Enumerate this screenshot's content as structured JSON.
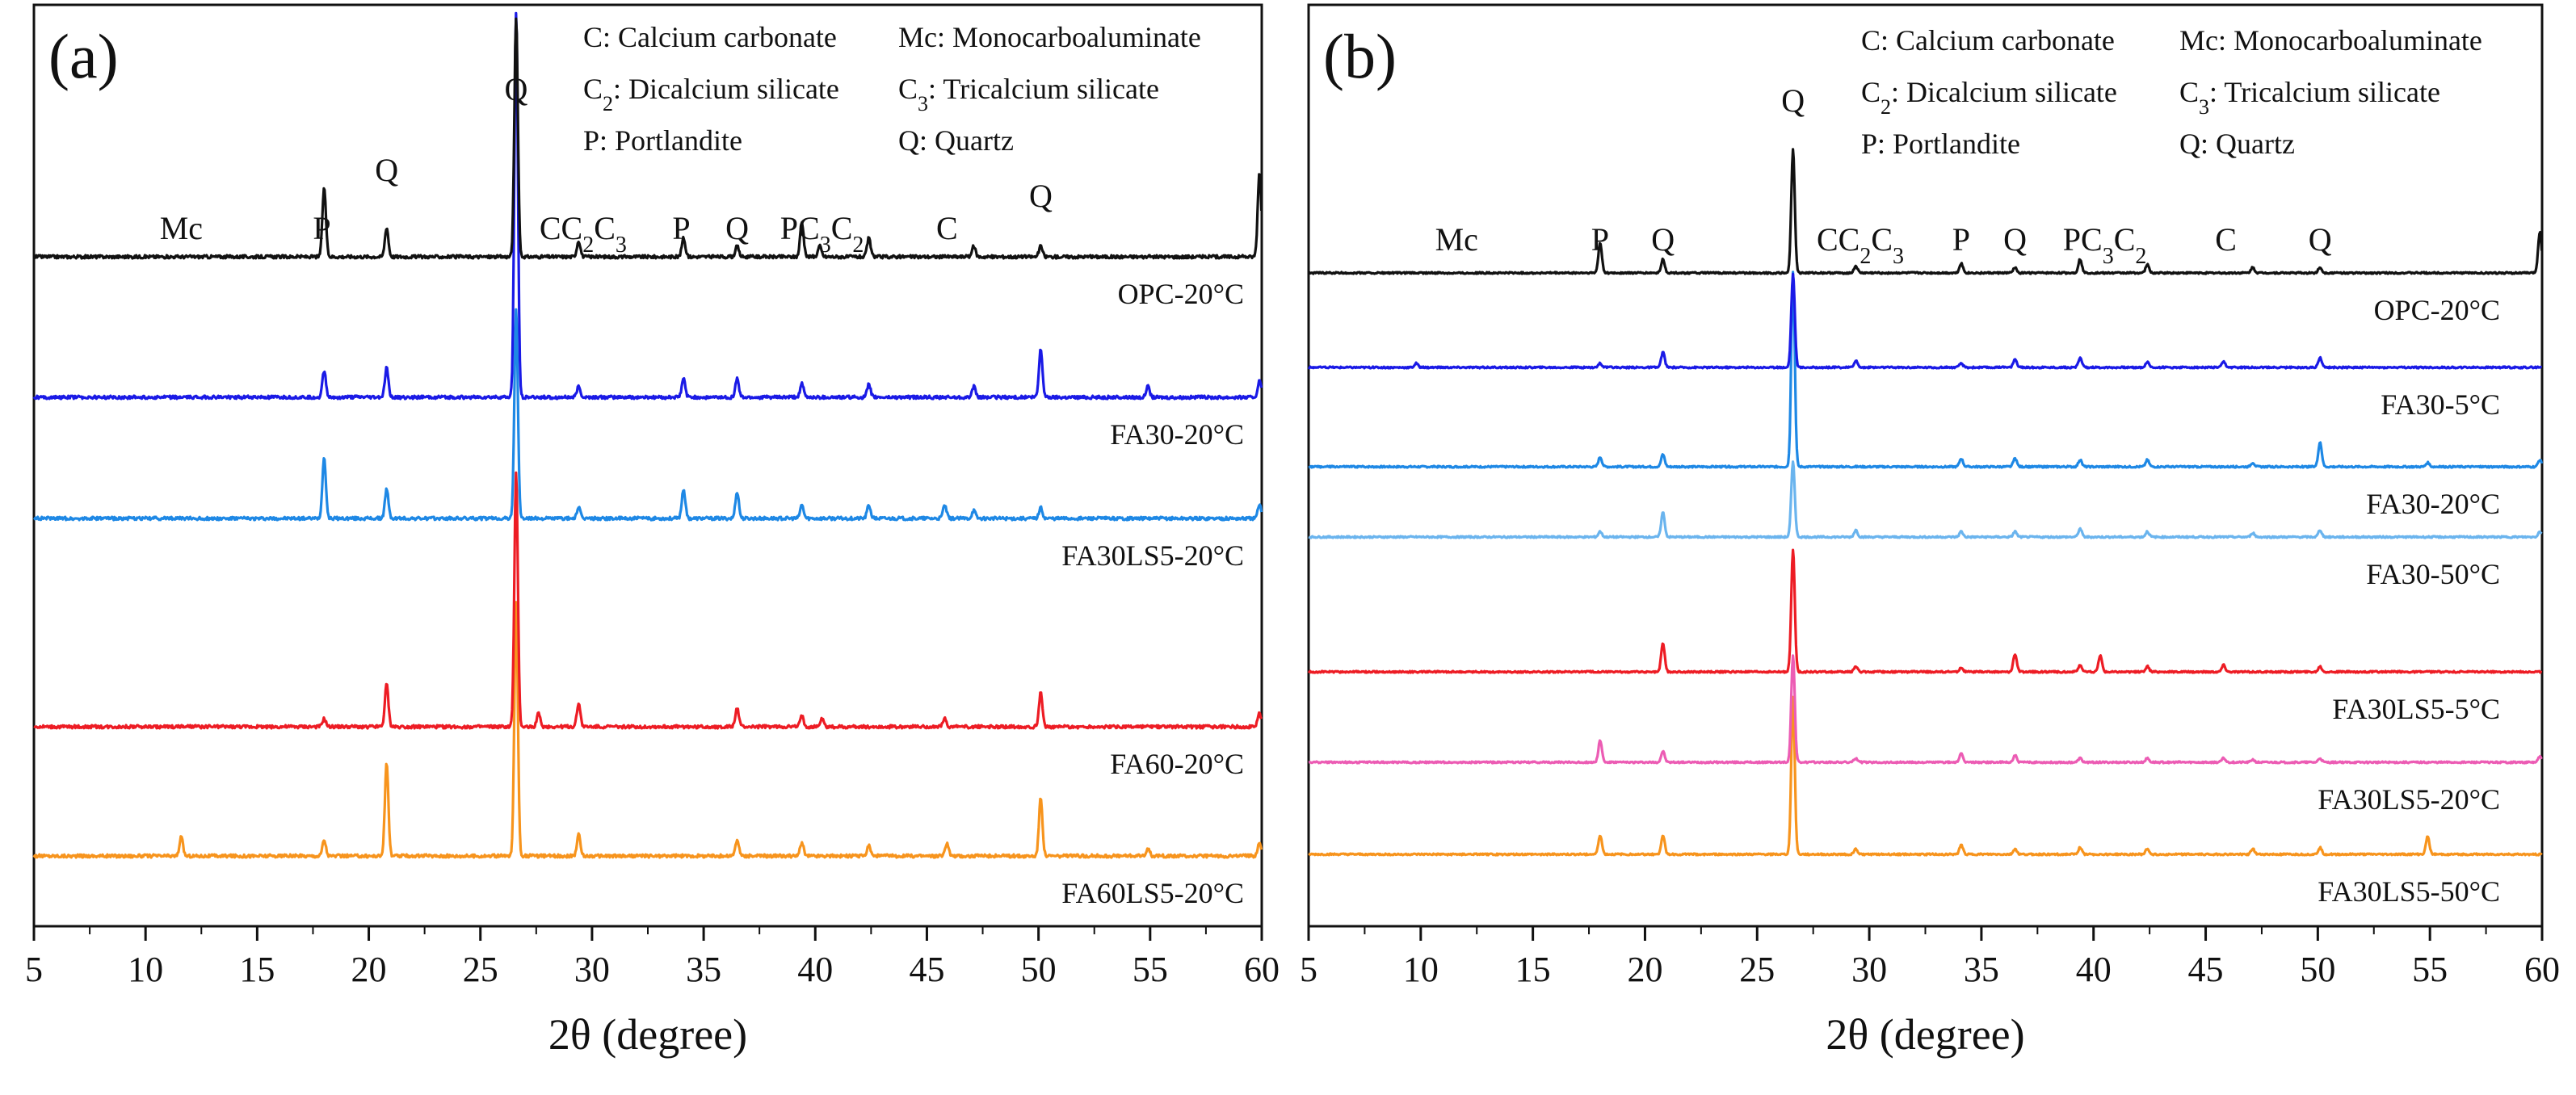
{
  "chart_data": [
    {
      "type": "line",
      "panel_label": "(a)",
      "xlabel": "2θ (degree)",
      "ylabel": "",
      "xlim": [
        5,
        60
      ],
      "xticks": [
        5,
        10,
        15,
        20,
        25,
        30,
        35,
        40,
        45,
        50,
        55,
        60
      ],
      "grid": false,
      "legend": [
        {
          "sym": "C",
          "sub": "",
          "text": ": Calcium carbonate"
        },
        {
          "sym": "Mc",
          "sub": "",
          "text": ": Monocarboaluminate"
        },
        {
          "sym": "C",
          "sub": "2",
          "text": ": Dicalcium silicate"
        },
        {
          "sym": "C",
          "sub": "3",
          "text": ": Tricalcium silicate"
        },
        {
          "sym": "P",
          "sub": "",
          "text": ": Portlandite"
        },
        {
          "sym": "Q",
          "sub": "",
          "text": ": Quartz"
        }
      ],
      "peak_annotations": [
        {
          "x": 11.6,
          "parts": [
            {
              "t": "Mc"
            }
          ]
        },
        {
          "x": 17.9,
          "parts": [
            {
              "t": "P"
            }
          ]
        },
        {
          "x": 20.8,
          "parts": [
            {
              "t": "Q"
            }
          ]
        },
        {
          "x": 26.6,
          "parts": [
            {
              "t": "Q"
            }
          ]
        },
        {
          "x": 29.6,
          "parts": [
            {
              "t": "C"
            },
            {
              "t": "C"
            },
            {
              "t": "2",
              "sub": true
            },
            {
              "t": "C"
            },
            {
              "t": "3",
              "sub": true
            }
          ]
        },
        {
          "x": 34.0,
          "parts": [
            {
              "t": "P"
            }
          ]
        },
        {
          "x": 36.5,
          "parts": [
            {
              "t": "Q"
            }
          ]
        },
        {
          "x": 40.3,
          "parts": [
            {
              "t": "P"
            },
            {
              "t": "C"
            },
            {
              "t": "3",
              "sub": true
            },
            {
              "t": "C"
            },
            {
              "t": "2",
              "sub": true
            }
          ]
        },
        {
          "x": 45.9,
          "parts": [
            {
              "t": "C"
            }
          ]
        },
        {
          "x": 50.1,
          "parts": [
            {
              "t": "Q"
            }
          ]
        }
      ],
      "series": [
        {
          "name": "FA60LS5-20°C",
          "color": "#F7941D",
          "offset": 4,
          "peaks": [
            {
              "x": 11.6,
              "y": 0.07
            },
            {
              "x": 18.0,
              "y": 0.06
            },
            {
              "x": 20.8,
              "y": 0.35
            },
            {
              "x": 26.6,
              "y": 0.95
            },
            {
              "x": 29.4,
              "y": 0.08
            },
            {
              "x": 36.5,
              "y": 0.06
            },
            {
              "x": 39.4,
              "y": 0.05
            },
            {
              "x": 42.4,
              "y": 0.04
            },
            {
              "x": 45.9,
              "y": 0.05
            },
            {
              "x": 50.1,
              "y": 0.22
            },
            {
              "x": 54.9,
              "y": 0.03
            },
            {
              "x": 59.9,
              "y": 0.05
            }
          ]
        },
        {
          "name": "FA60-20°C",
          "color": "#ED1C24",
          "offset": 3,
          "peaks": [
            {
              "x": 18.0,
              "y": 0.03
            },
            {
              "x": 20.8,
              "y": 0.16
            },
            {
              "x": 26.6,
              "y": 0.95
            },
            {
              "x": 27.6,
              "y": 0.05
            },
            {
              "x": 29.4,
              "y": 0.09
            },
            {
              "x": 36.5,
              "y": 0.07
            },
            {
              "x": 39.4,
              "y": 0.04
            },
            {
              "x": 40.3,
              "y": 0.03
            },
            {
              "x": 45.8,
              "y": 0.03
            },
            {
              "x": 50.1,
              "y": 0.13
            },
            {
              "x": 59.9,
              "y": 0.05
            }
          ]
        },
        {
          "name": "FA30LS5-20°C",
          "color": "#1E88E5",
          "offset": 2,
          "peaks": [
            {
              "x": 18.0,
              "y": 0.23
            },
            {
              "x": 20.8,
              "y": 0.11
            },
            {
              "x": 26.6,
              "y": 0.78
            },
            {
              "x": 29.4,
              "y": 0.04
            },
            {
              "x": 34.1,
              "y": 0.11
            },
            {
              "x": 36.5,
              "y": 0.1
            },
            {
              "x": 39.4,
              "y": 0.05
            },
            {
              "x": 42.4,
              "y": 0.05
            },
            {
              "x": 45.8,
              "y": 0.05
            },
            {
              "x": 47.1,
              "y": 0.03
            },
            {
              "x": 50.1,
              "y": 0.04
            },
            {
              "x": 59.9,
              "y": 0.05
            }
          ]
        },
        {
          "name": "FA30-20°C",
          "color": "#1A1AE6",
          "offset": 1,
          "peaks": [
            {
              "x": 18.0,
              "y": 0.1
            },
            {
              "x": 20.8,
              "y": 0.11
            },
            {
              "x": 26.6,
              "y": 1.45
            },
            {
              "x": 29.4,
              "y": 0.04
            },
            {
              "x": 34.1,
              "y": 0.07
            },
            {
              "x": 36.5,
              "y": 0.07
            },
            {
              "x": 39.4,
              "y": 0.05
            },
            {
              "x": 42.4,
              "y": 0.05
            },
            {
              "x": 47.1,
              "y": 0.04
            },
            {
              "x": 50.1,
              "y": 0.18
            },
            {
              "x": 54.9,
              "y": 0.04
            },
            {
              "x": 59.9,
              "y": 0.06
            }
          ]
        },
        {
          "name": "OPC-20°C",
          "color": "#111111",
          "offset": 0,
          "peaks": [
            {
              "x": 18.0,
              "y": 0.26
            },
            {
              "x": 20.8,
              "y": 0.11
            },
            {
              "x": 26.6,
              "y": 0.9
            },
            {
              "x": 29.4,
              "y": 0.06
            },
            {
              "x": 34.1,
              "y": 0.07
            },
            {
              "x": 36.5,
              "y": 0.04
            },
            {
              "x": 39.4,
              "y": 0.13
            },
            {
              "x": 40.2,
              "y": 0.04
            },
            {
              "x": 42.4,
              "y": 0.07
            },
            {
              "x": 47.1,
              "y": 0.04
            },
            {
              "x": 50.1,
              "y": 0.04
            },
            {
              "x": 59.9,
              "y": 0.32
            }
          ]
        }
      ]
    },
    {
      "type": "line",
      "panel_label": "(b)",
      "xlabel": "2θ (degree)",
      "ylabel": "",
      "xlim": [
        5,
        60
      ],
      "xticks": [
        5,
        10,
        15,
        20,
        25,
        30,
        35,
        40,
        45,
        50,
        55,
        60
      ],
      "grid": false,
      "legend": [
        {
          "sym": "C",
          "sub": "",
          "text": ": Calcium carbonate"
        },
        {
          "sym": "Mc",
          "sub": "",
          "text": ": Monocarboaluminate"
        },
        {
          "sym": "C",
          "sub": "2",
          "text": ": Dicalcium silicate"
        },
        {
          "sym": "C",
          "sub": "3",
          "text": ": Tricalcium silicate"
        },
        {
          "sym": "P",
          "sub": "",
          "text": ": Portlandite"
        },
        {
          "sym": "Q",
          "sub": "",
          "text": ": Quartz"
        }
      ],
      "peak_annotations": [
        {
          "x": 11.6,
          "parts": [
            {
              "t": "Mc"
            }
          ]
        },
        {
          "x": 18.0,
          "parts": [
            {
              "t": "P"
            }
          ]
        },
        {
          "x": 20.8,
          "parts": [
            {
              "t": "Q"
            }
          ]
        },
        {
          "x": 26.6,
          "parts": [
            {
              "t": "Q"
            }
          ]
        },
        {
          "x": 29.6,
          "parts": [
            {
              "t": "C"
            },
            {
              "t": "C"
            },
            {
              "t": "2",
              "sub": true
            },
            {
              "t": "C"
            },
            {
              "t": "3",
              "sub": true
            }
          ]
        },
        {
          "x": 34.1,
          "parts": [
            {
              "t": "P"
            }
          ]
        },
        {
          "x": 36.5,
          "parts": [
            {
              "t": "Q"
            }
          ]
        },
        {
          "x": 40.5,
          "parts": [
            {
              "t": "P"
            },
            {
              "t": "C"
            },
            {
              "t": "3",
              "sub": true
            },
            {
              "t": "C"
            },
            {
              "t": "2",
              "sub": true
            }
          ]
        },
        {
          "x": 45.9,
          "parts": [
            {
              "t": "C"
            }
          ]
        },
        {
          "x": 50.1,
          "parts": [
            {
              "t": "Q"
            }
          ]
        }
      ],
      "series": [
        {
          "name": "FA30LS5-50°C",
          "color": "#F7941D",
          "offset": 6,
          "peaks": [
            {
              "x": 18.0,
              "y": 0.14
            },
            {
              "x": 20.8,
              "y": 0.14
            },
            {
              "x": 26.6,
              "y": 1.15
            },
            {
              "x": 29.4,
              "y": 0.04
            },
            {
              "x": 34.1,
              "y": 0.07
            },
            {
              "x": 36.5,
              "y": 0.04
            },
            {
              "x": 39.4,
              "y": 0.05
            },
            {
              "x": 42.4,
              "y": 0.04
            },
            {
              "x": 47.1,
              "y": 0.04
            },
            {
              "x": 50.1,
              "y": 0.05
            },
            {
              "x": 54.9,
              "y": 0.13
            }
          ]
        },
        {
          "name": "FA30LS5-20°C",
          "color": "#EC5CB4",
          "offset": 5,
          "peaks": [
            {
              "x": 18.0,
              "y": 0.16
            },
            {
              "x": 20.8,
              "y": 0.08
            },
            {
              "x": 26.6,
              "y": 0.78
            },
            {
              "x": 29.4,
              "y": 0.03
            },
            {
              "x": 34.1,
              "y": 0.06
            },
            {
              "x": 36.5,
              "y": 0.05
            },
            {
              "x": 39.4,
              "y": 0.03
            },
            {
              "x": 42.4,
              "y": 0.03
            },
            {
              "x": 45.8,
              "y": 0.03
            },
            {
              "x": 47.1,
              "y": 0.02
            },
            {
              "x": 50.1,
              "y": 0.03
            },
            {
              "x": 59.9,
              "y": 0.04
            }
          ]
        },
        {
          "name": "FA30LS5-5°C",
          "color": "#ED1C24",
          "offset": 4,
          "peaks": [
            {
              "x": 20.8,
              "y": 0.21
            },
            {
              "x": 26.6,
              "y": 0.89
            },
            {
              "x": 29.4,
              "y": 0.04
            },
            {
              "x": 34.1,
              "y": 0.03
            },
            {
              "x": 36.5,
              "y": 0.13
            },
            {
              "x": 39.4,
              "y": 0.05
            },
            {
              "x": 40.3,
              "y": 0.12
            },
            {
              "x": 42.4,
              "y": 0.04
            },
            {
              "x": 45.8,
              "y": 0.05
            },
            {
              "x": 50.1,
              "y": 0.04
            }
          ]
        },
        {
          "name": "FA30-50°C",
          "color": "#6AB4EE",
          "offset": 3,
          "peaks": [
            {
              "x": 18.0,
              "y": 0.04
            },
            {
              "x": 20.8,
              "y": 0.18
            },
            {
              "x": 26.6,
              "y": 0.55
            },
            {
              "x": 29.4,
              "y": 0.05
            },
            {
              "x": 34.1,
              "y": 0.04
            },
            {
              "x": 36.5,
              "y": 0.04
            },
            {
              "x": 39.4,
              "y": 0.06
            },
            {
              "x": 42.4,
              "y": 0.04
            },
            {
              "x": 47.1,
              "y": 0.03
            },
            {
              "x": 50.1,
              "y": 0.05
            },
            {
              "x": 59.9,
              "y": 0.04
            }
          ]
        },
        {
          "name": "FA30-20°C",
          "color": "#1E88E5",
          "offset": 2,
          "peaks": [
            {
              "x": 18.0,
              "y": 0.07
            },
            {
              "x": 20.8,
              "y": 0.09
            },
            {
              "x": 26.6,
              "y": 1.42
            },
            {
              "x": 34.1,
              "y": 0.06
            },
            {
              "x": 36.5,
              "y": 0.06
            },
            {
              "x": 39.4,
              "y": 0.05
            },
            {
              "x": 42.4,
              "y": 0.05
            },
            {
              "x": 47.1,
              "y": 0.03
            },
            {
              "x": 50.1,
              "y": 0.18
            },
            {
              "x": 54.9,
              "y": 0.03
            },
            {
              "x": 59.9,
              "y": 0.05
            }
          ]
        },
        {
          "name": "FA30-5°C",
          "color": "#1A1AE6",
          "offset": 1,
          "peaks": [
            {
              "x": 9.8,
              "y": 0.03
            },
            {
              "x": 18.0,
              "y": 0.03
            },
            {
              "x": 20.8,
              "y": 0.11
            },
            {
              "x": 26.6,
              "y": 0.68
            },
            {
              "x": 29.4,
              "y": 0.05
            },
            {
              "x": 34.1,
              "y": 0.03
            },
            {
              "x": 36.5,
              "y": 0.06
            },
            {
              "x": 39.4,
              "y": 0.07
            },
            {
              "x": 42.4,
              "y": 0.04
            },
            {
              "x": 45.8,
              "y": 0.04
            },
            {
              "x": 50.1,
              "y": 0.07
            }
          ]
        },
        {
          "name": "OPC-20°C",
          "color": "#111111",
          "offset": 0,
          "peaks": [
            {
              "x": 18.0,
              "y": 0.22
            },
            {
              "x": 20.8,
              "y": 0.1
            },
            {
              "x": 26.6,
              "y": 0.9
            },
            {
              "x": 29.4,
              "y": 0.05
            },
            {
              "x": 34.1,
              "y": 0.07
            },
            {
              "x": 36.5,
              "y": 0.04
            },
            {
              "x": 39.4,
              "y": 0.1
            },
            {
              "x": 42.4,
              "y": 0.06
            },
            {
              "x": 47.1,
              "y": 0.04
            },
            {
              "x": 50.1,
              "y": 0.04
            },
            {
              "x": 59.9,
              "y": 0.3
            }
          ]
        }
      ]
    }
  ]
}
